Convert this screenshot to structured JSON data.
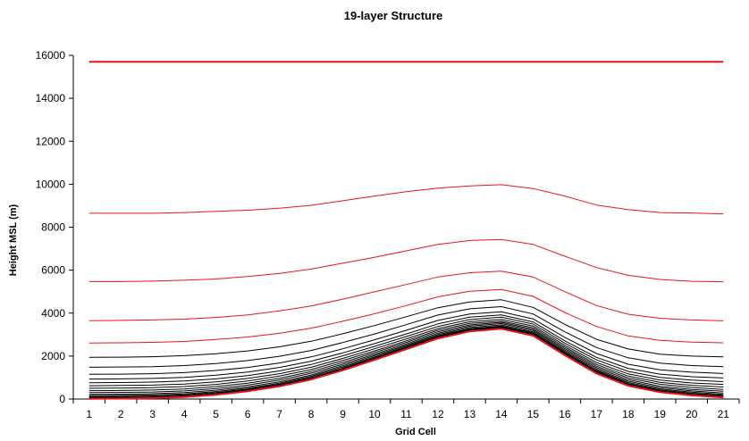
{
  "chart_data": {
    "type": "line",
    "title": "19-layer Structure",
    "xlabel": "Grid Cell",
    "ylabel": "Height MSL (m)",
    "x": [
      1,
      2,
      3,
      4,
      5,
      6,
      7,
      8,
      9,
      10,
      11,
      12,
      13,
      14,
      15,
      16,
      17,
      18,
      19,
      20,
      21
    ],
    "ylim": [
      0,
      16000
    ],
    "yticks": [
      0,
      2000,
      4000,
      6000,
      8000,
      10000,
      12000,
      14000,
      16000
    ],
    "grid": false,
    "legend": "none",
    "colors": {
      "red": "#e8141b",
      "black": "#000000"
    },
    "series": [
      {
        "color": "red",
        "values": [
          15700,
          15700,
          15700,
          15700,
          15700,
          15700,
          15700,
          15700,
          15700,
          15700,
          15700,
          15700,
          15700,
          15700,
          15700,
          15700,
          15700,
          15700,
          15700,
          15700,
          15700
        ]
      },
      {
        "color": "red",
        "values": [
          8650,
          8650,
          8650,
          8680,
          8740,
          8790,
          8880,
          9020,
          9230,
          9450,
          9650,
          9820,
          9920,
          9980,
          9800,
          9450,
          9030,
          8820,
          8680,
          8660,
          8620
        ]
      },
      {
        "color": "red",
        "values": [
          5470,
          5470,
          5490,
          5530,
          5590,
          5700,
          5850,
          6050,
          6320,
          6600,
          6900,
          7200,
          7380,
          7430,
          7200,
          6650,
          6120,
          5760,
          5570,
          5480,
          5460
        ]
      },
      {
        "color": "red",
        "values": [
          3650,
          3660,
          3680,
          3720,
          3800,
          3920,
          4100,
          4330,
          4650,
          4990,
          5330,
          5680,
          5880,
          5950,
          5680,
          5000,
          4350,
          3950,
          3760,
          3680,
          3640
        ]
      },
      {
        "color": "red",
        "values": [
          2610,
          2620,
          2640,
          2680,
          2770,
          2890,
          3060,
          3300,
          3620,
          3970,
          4350,
          4760,
          5020,
          5100,
          4780,
          4030,
          3380,
          2940,
          2730,
          2650,
          2620
        ]
      },
      {
        "color": "black",
        "values": [
          1940,
          1950,
          1970,
          2020,
          2110,
          2240,
          2430,
          2690,
          3040,
          3420,
          3830,
          4250,
          4520,
          4620,
          4270,
          3480,
          2780,
          2330,
          2090,
          2000,
          1960
        ]
      },
      {
        "color": "black",
        "values": [
          1480,
          1490,
          1510,
          1560,
          1650,
          1790,
          1990,
          2260,
          2630,
          3030,
          3460,
          3910,
          4200,
          4300,
          3960,
          3130,
          2400,
          1920,
          1670,
          1560,
          1510
        ]
      },
      {
        "color": "black",
        "values": [
          1150,
          1160,
          1180,
          1230,
          1330,
          1470,
          1680,
          1960,
          2340,
          2760,
          3200,
          3660,
          3960,
          4060,
          3730,
          2870,
          2120,
          1620,
          1360,
          1250,
          1190
        ]
      },
      {
        "color": "black",
        "values": [
          930,
          940,
          960,
          1010,
          1110,
          1260,
          1470,
          1760,
          2150,
          2580,
          3030,
          3500,
          3810,
          3920,
          3590,
          2710,
          1940,
          1430,
          1160,
          1040,
          980
        ]
      },
      {
        "color": "black",
        "values": [
          760,
          770,
          790,
          840,
          940,
          1090,
          1310,
          1610,
          2010,
          2450,
          2910,
          3380,
          3700,
          3810,
          3490,
          2600,
          1820,
          1290,
          1010,
          880,
          810
        ]
      },
      {
        "color": "black",
        "values": [
          620,
          630,
          650,
          700,
          800,
          960,
          1180,
          1480,
          1890,
          2340,
          2800,
          3280,
          3600,
          3710,
          3400,
          2500,
          1700,
          1170,
          880,
          750,
          680
        ]
      },
      {
        "color": "black",
        "values": [
          500,
          510,
          530,
          580,
          680,
          840,
          1070,
          1370,
          1790,
          2240,
          2710,
          3200,
          3520,
          3630,
          3320,
          2420,
          1610,
          1070,
          780,
          640,
          560
        ]
      },
      {
        "color": "black",
        "values": [
          390,
          400,
          420,
          470,
          580,
          740,
          970,
          1280,
          1700,
          2160,
          2640,
          3130,
          3450,
          3570,
          3250,
          2350,
          1530,
          980,
          690,
          540,
          450
        ]
      },
      {
        "color": "black",
        "values": [
          300,
          310,
          330,
          380,
          490,
          650,
          880,
          1200,
          1620,
          2080,
          2570,
          3060,
          3390,
          3510,
          3190,
          2280,
          1460,
          900,
          600,
          450,
          360
        ]
      },
      {
        "color": "black",
        "values": [
          220,
          230,
          250,
          300,
          410,
          570,
          800,
          1120,
          1550,
          2020,
          2510,
          3000,
          3330,
          3450,
          3130,
          2220,
          1390,
          830,
          530,
          380,
          280
        ]
      },
      {
        "color": "black",
        "values": [
          160,
          170,
          190,
          240,
          350,
          510,
          740,
          1060,
          1490,
          1960,
          2460,
          2950,
          3280,
          3400,
          3080,
          2170,
          1330,
          770,
          470,
          320,
          220
        ]
      },
      {
        "color": "black",
        "values": [
          110,
          120,
          140,
          190,
          300,
          460,
          690,
          1010,
          1440,
          1920,
          2420,
          2910,
          3240,
          3360,
          3040,
          2130,
          1290,
          720,
          420,
          270,
          170
        ]
      },
      {
        "color": "black",
        "values": [
          70,
          80,
          100,
          150,
          260,
          420,
          650,
          970,
          1400,
          1880,
          2380,
          2880,
          3210,
          3330,
          3010,
          2100,
          1250,
          680,
          380,
          230,
          130
        ]
      },
      {
        "color": "black",
        "values": [
          40,
          50,
          70,
          120,
          230,
          390,
          620,
          940,
          1370,
          1850,
          2350,
          2850,
          3180,
          3300,
          2980,
          2070,
          1220,
          650,
          350,
          200,
          100
        ]
      },
      {
        "color": "red",
        "values": [
          10,
          20,
          40,
          90,
          200,
          360,
          590,
          910,
          1340,
          1820,
          2320,
          2820,
          3150,
          3270,
          2950,
          2040,
          1190,
          620,
          320,
          170,
          70
        ]
      }
    ]
  }
}
